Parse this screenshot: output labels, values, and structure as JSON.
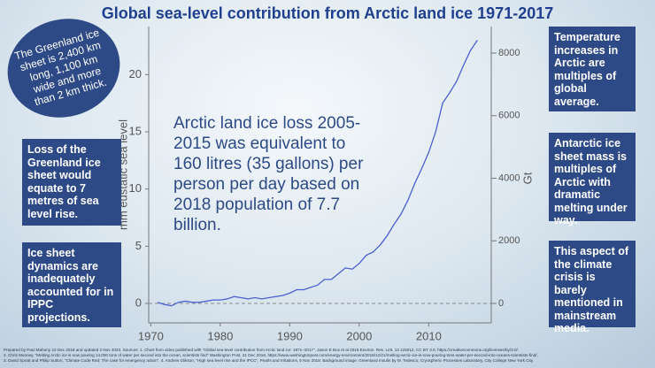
{
  "chart_data": {
    "type": "line",
    "title": "Global sea-level contribution from Arctic land ice 1971-2017",
    "y_label": "mm eustatic sea level",
    "y2_label": "Gt",
    "x": [
      1971,
      1972,
      1973,
      1974,
      1975,
      1976,
      1977,
      1978,
      1979,
      1980,
      1981,
      1982,
      1983,
      1984,
      1985,
      1986,
      1987,
      1988,
      1989,
      1990,
      1991,
      1992,
      1993,
      1994,
      1995,
      1996,
      1997,
      1998,
      1999,
      2000,
      2001,
      2002,
      2003,
      2004,
      2005,
      2006,
      2007,
      2008,
      2009,
      2010,
      2011,
      2012,
      2013,
      2014,
      2015,
      2016,
      2017
    ],
    "series": [
      {
        "color": "#4a5fd0",
        "values": [
          0.1,
          -0.1,
          -0.2,
          0.1,
          0.2,
          0.1,
          0.1,
          0.2,
          0.3,
          0.3,
          0.4,
          0.6,
          0.5,
          0.4,
          0.5,
          0.4,
          0.5,
          0.6,
          0.7,
          0.9,
          1.2,
          1.2,
          1.4,
          1.6,
          2.1,
          2.1,
          2.6,
          3.1,
          3.0,
          3.5,
          4.2,
          4.5,
          5.1,
          5.9,
          6.9,
          7.8,
          9.0,
          10.5,
          11.8,
          13.2,
          15.0,
          17.5,
          18.4,
          19.4,
          20.8,
          22.1,
          23.0
        ]
      }
    ],
    "xlim": [
      1969.7,
      2019
    ],
    "xticks": [
      1970,
      1980,
      1990,
      2000,
      2010
    ],
    "ylim": [
      -1.7,
      24.2
    ],
    "yticks": [
      0,
      5,
      10,
      15,
      20
    ],
    "y2lim": [
      -622,
      8849
    ],
    "y2ticks": [
      0,
      2000,
      4000,
      6000,
      8000
    ],
    "annotation": "Arctic land ice loss 2005-2015 was equivalent to 160 litres (35 gallons) per person per day based on 2018 population of 7.7 billion."
  },
  "badge": "The Greenland ice sheet is 2,400 km long, 1,100 km wide and more than 2 km thick.",
  "left_notes": [
    "Loss of the Greenland ice sheet would equate to 7 metres of sea level rise.",
    "Ice sheet dynamics are inadequately accounted for in IPPC projections."
  ],
  "right_notes": [
    "Temperature increases in Arctic are multiples of global average.",
    "Antarctic ice sheet mass is multiples of Arctic with dramatic melting under way.",
    "This aspect of the climate crisis is barely mentioned in mainstream media."
  ],
  "footnote": [
    "Prepared by Paul Mahony 22 Dec 2018 and updated 2 Nov 2023. Sources: 1. Chart from video published with \"Global sea-level contribution from Arctic land ice: 1971–2017\", Jason E Box et al 2018 Environ. Res. Lett. 13 125012, CC BY 3.0, https://creativecommons.org/licenses/by/3.0/.",
    "2. Chris Mooney, \"Melting Arctic ice is now pouring 14,000 tons of water per second into the ocean, scientists find\" Washington Post, 21 Dec 2018, https://www.washingtonpost.com/energy-environment/2018/12/21/melting-arctic-ice-is-now-pouring-tons-water-per-second-into-oceans-scientists-find/,",
    "3. David Spratt and Philip Sutton, \"Climate Code Red: The case for emergency action\". 4. Andrew Glikson, \"High sea level rise and the IPCC\", Pearls and Irritations, 5 Nov 2018. Background image: Greenland moulin by M. Tedesco, Cryospheric Processes Laboratory, City College New York City."
  ]
}
